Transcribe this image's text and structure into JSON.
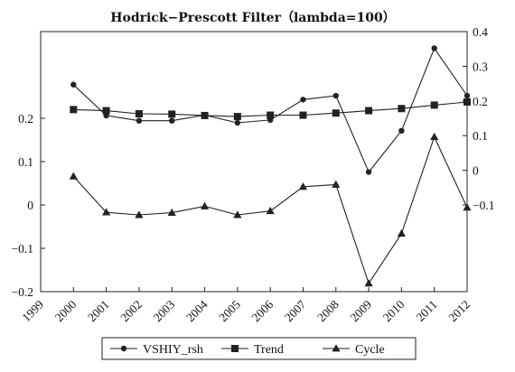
{
  "chart_data": {
    "type": "line",
    "title": "Hodrick−Prescott Filter（lambda=100）",
    "x": [
      "1999",
      "2000",
      "2001",
      "2002",
      "2003",
      "2004",
      "2005",
      "2006",
      "2007",
      "2008",
      "2009",
      "2010",
      "2011",
      "2012"
    ],
    "left_axis": {
      "ylim": [
        -0.2,
        0.4
      ],
      "ticks": [
        -0.2,
        -0.1,
        0,
        0.1,
        0.2
      ],
      "tick_labels": [
        "−0.2",
        "−0.1",
        "0",
        "0.1",
        "0.2"
      ]
    },
    "right_axis": {
      "ylim": [
        -0.35,
        0.4
      ],
      "ticks": [
        -0.1,
        0,
        0.1,
        0.2,
        0.3,
        0.4
      ],
      "tick_labels": [
        "−0.1",
        "0",
        "0.1",
        "0.2",
        "0.3",
        "0.4"
      ]
    },
    "series": [
      {
        "name": "VSHIY_rsh",
        "axis": "right",
        "marker": "circle",
        "x": [
          "2000",
          "2001",
          "2002",
          "2003",
          "2004",
          "2005",
          "2006",
          "2007",
          "2008",
          "2009",
          "2010",
          "2011",
          "2012"
        ],
        "values": [
          0.247,
          0.158,
          0.143,
          0.143,
          0.159,
          0.137,
          0.145,
          0.204,
          0.215,
          -0.005,
          0.114,
          0.352,
          0.215
        ]
      },
      {
        "name": "Trend",
        "axis": "right",
        "marker": "square",
        "x": [
          "2000",
          "2001",
          "2002",
          "2003",
          "2004",
          "2005",
          "2006",
          "2007",
          "2008",
          "2009",
          "2010",
          "2011",
          "2012"
        ],
        "values": [
          0.175,
          0.172,
          0.163,
          0.162,
          0.158,
          0.155,
          0.159,
          0.159,
          0.165,
          0.172,
          0.178,
          0.188,
          0.197
        ]
      },
      {
        "name": "Cycle",
        "axis": "left",
        "marker": "triangle",
        "x": [
          "2000",
          "2001",
          "2002",
          "2003",
          "2004",
          "2005",
          "2006",
          "2007",
          "2008",
          "2009",
          "2010",
          "2011",
          "2012"
        ],
        "values": [
          0.066,
          -0.017,
          -0.023,
          -0.018,
          -0.003,
          -0.023,
          -0.014,
          0.042,
          0.047,
          -0.181,
          -0.066,
          0.157,
          -0.006
        ]
      }
    ],
    "legend": {
      "position": "bottom",
      "items": [
        "VSHIY_rsh",
        "Trend",
        "Cycle"
      ]
    }
  }
}
